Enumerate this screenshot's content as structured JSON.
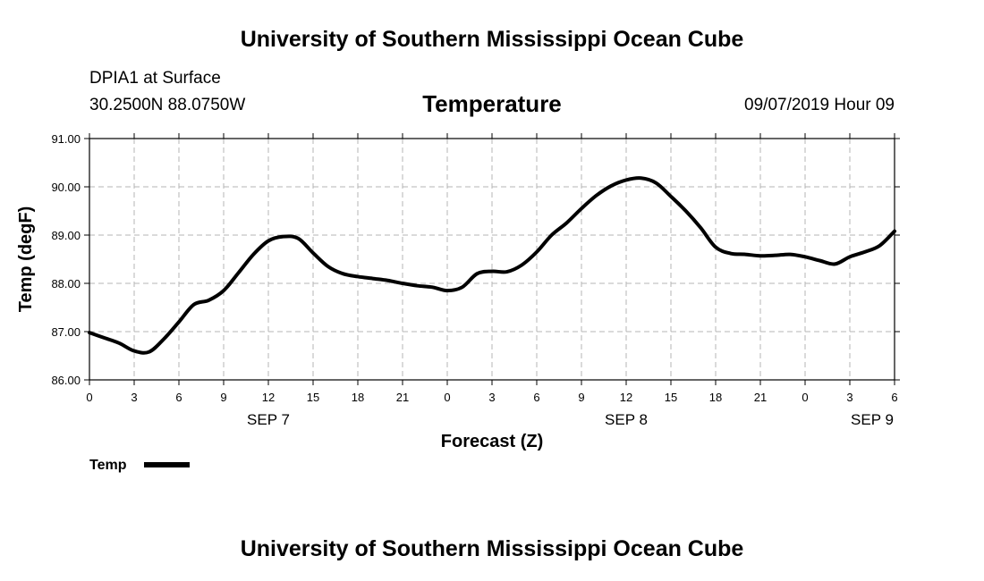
{
  "header": {
    "title": "University of Southern Mississippi Ocean Cube",
    "station": "DPIA1 at Surface",
    "coords": "30.2500N 88.0750W",
    "run_time": "09/07/2019 Hour 09"
  },
  "footer": {
    "title": "University of Southern Mississippi Ocean Cube"
  },
  "chart_data": {
    "type": "line",
    "title": "Temperature",
    "xlabel": "Forecast (Z)",
    "ylabel": "Temp (degF)",
    "ylim": [
      86.0,
      91.0
    ],
    "yticks": [
      "86.00",
      "87.00",
      "88.00",
      "89.00",
      "90.00",
      "91.00"
    ],
    "xlim_hours": [
      0,
      54
    ],
    "x_tick_labels": [
      "0",
      "3",
      "6",
      "9",
      "12",
      "15",
      "18",
      "21",
      "0",
      "3",
      "6",
      "9",
      "12",
      "15",
      "18",
      "21",
      "0",
      "3",
      "6"
    ],
    "day_labels": [
      {
        "label": "SEP 7",
        "hour": 12
      },
      {
        "label": "SEP 8",
        "hour": 36
      },
      {
        "label": "SEP 9",
        "hour": 52.5
      }
    ],
    "grid": true,
    "legend": "bottom-left",
    "series": [
      {
        "name": "Temp",
        "x_hours": [
          0,
          1,
          2,
          3,
          4,
          5,
          6,
          7,
          8,
          9,
          10,
          11,
          12,
          13,
          14,
          15,
          16,
          17,
          18,
          19,
          20,
          21,
          22,
          23,
          24,
          25,
          26,
          27,
          28,
          29,
          30,
          31,
          32,
          33,
          34,
          35,
          36,
          37,
          38,
          39,
          40,
          41,
          42,
          43,
          44,
          45,
          46,
          47,
          48,
          49,
          50,
          51,
          52,
          53,
          54
        ],
        "values": [
          86.98,
          86.87,
          86.76,
          86.6,
          86.58,
          86.85,
          87.2,
          87.56,
          87.65,
          87.85,
          88.22,
          88.6,
          88.88,
          88.97,
          88.93,
          88.63,
          88.35,
          88.2,
          88.14,
          88.1,
          88.06,
          88.0,
          87.95,
          87.92,
          87.85,
          87.92,
          88.2,
          88.25,
          88.24,
          88.38,
          88.65,
          89.0,
          89.25,
          89.55,
          89.82,
          90.02,
          90.14,
          90.18,
          90.08,
          89.8,
          89.5,
          89.15,
          88.75,
          88.62,
          88.6,
          88.57,
          88.58,
          88.6,
          88.55,
          88.47,
          88.4,
          88.55,
          88.65,
          88.78,
          89.08
        ]
      }
    ]
  },
  "legend": {
    "label": "Temp"
  },
  "colors": {
    "line": "#000000",
    "grid": "#b5b5b5",
    "frame": "#000000"
  }
}
